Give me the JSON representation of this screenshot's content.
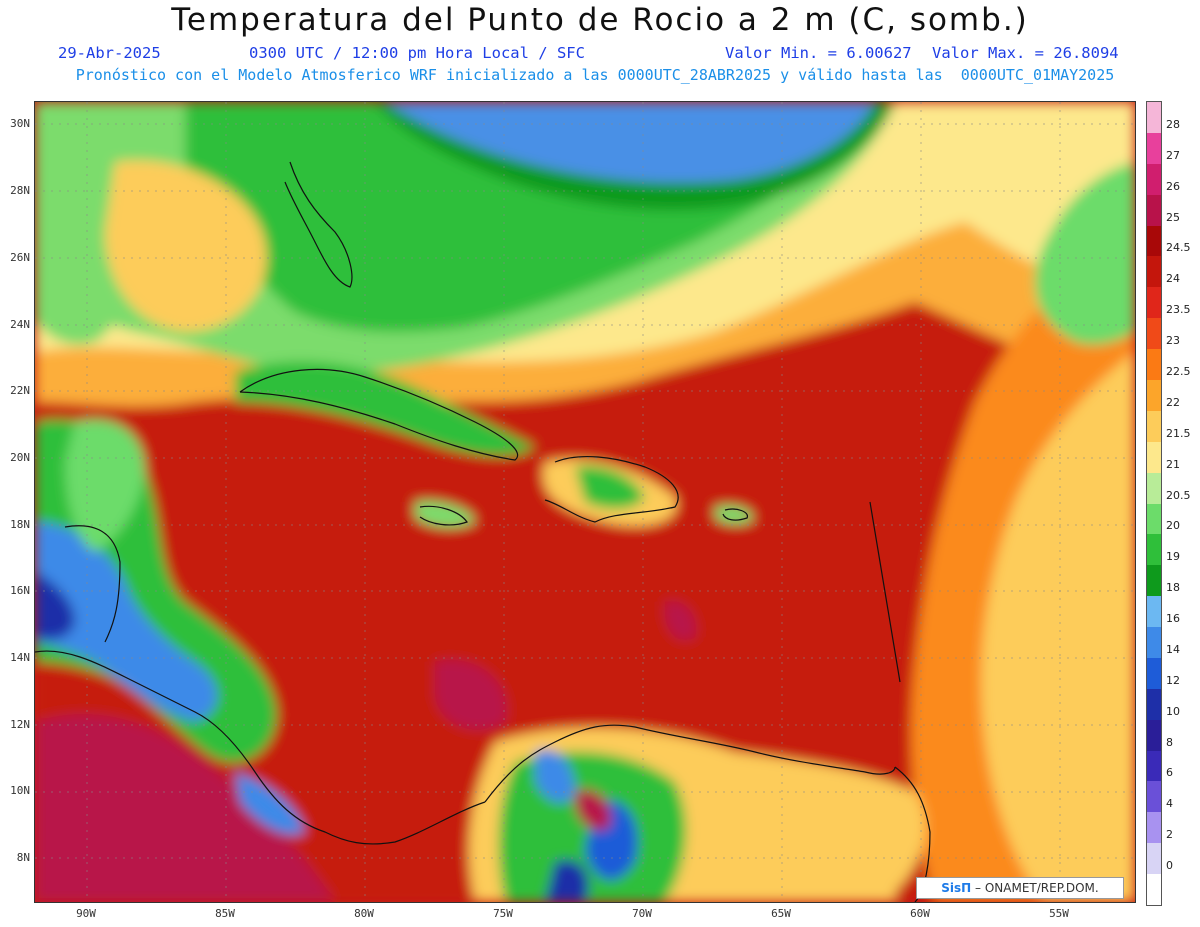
{
  "header": {
    "title": "Temperatura del Punto de Rocio a 2 m (C, somb.)",
    "date": "29-Abr-2025",
    "time": "0300 UTC / 12:00 pm Hora Local / SFC",
    "min_label": "Valor Min. = 6.00627",
    "max_label": "Valor Max. = 26.8094",
    "model_line": "Pronóstico con el Modelo Atmosferico WRF inicializado a las 0000UTC_28ABR2025 y válido hasta las  0000UTC_01MAY2025"
  },
  "axes": {
    "lat_labels": [
      "30N",
      "28N",
      "26N",
      "24N",
      "22N",
      "20N",
      "18N",
      "16N",
      "14N",
      "12N",
      "10N",
      "8N"
    ],
    "lon_labels": [
      "90W",
      "85W",
      "80W",
      "75W",
      "70W",
      "65W",
      "60W",
      "55W"
    ]
  },
  "colorbar": {
    "labels": [
      "28",
      "27",
      "26",
      "25",
      "24.5",
      "24",
      "23.5",
      "23",
      "22.5",
      "22",
      "21.5",
      "21",
      "20.5",
      "20",
      "19",
      "18",
      "16",
      "14",
      "12",
      "10",
      "8",
      "6",
      "4",
      "2",
      "0"
    ],
    "colors": [
      "#f5b6d8",
      "#e8409c",
      "#d01e6e",
      "#b8124a",
      "#a80808",
      "#c4160c",
      "#e0261a",
      "#f04a18",
      "#fb7a14",
      "#fca52a",
      "#fdcc5a",
      "#fde88c",
      "#b8ec98",
      "#6cdc6a",
      "#2fbf3a",
      "#0e9a1c",
      "#6cb8f2",
      "#3e8ae8",
      "#1e5cd8",
      "#1e2fa8",
      "#2a1e98",
      "#3a2ab8",
      "#6a50d8",
      "#a892f0",
      "#d8d4f5",
      "#ffffff"
    ]
  },
  "credit": {
    "brand": "SisΠ",
    "text": " – ONAMET/REP.DOM."
  }
}
